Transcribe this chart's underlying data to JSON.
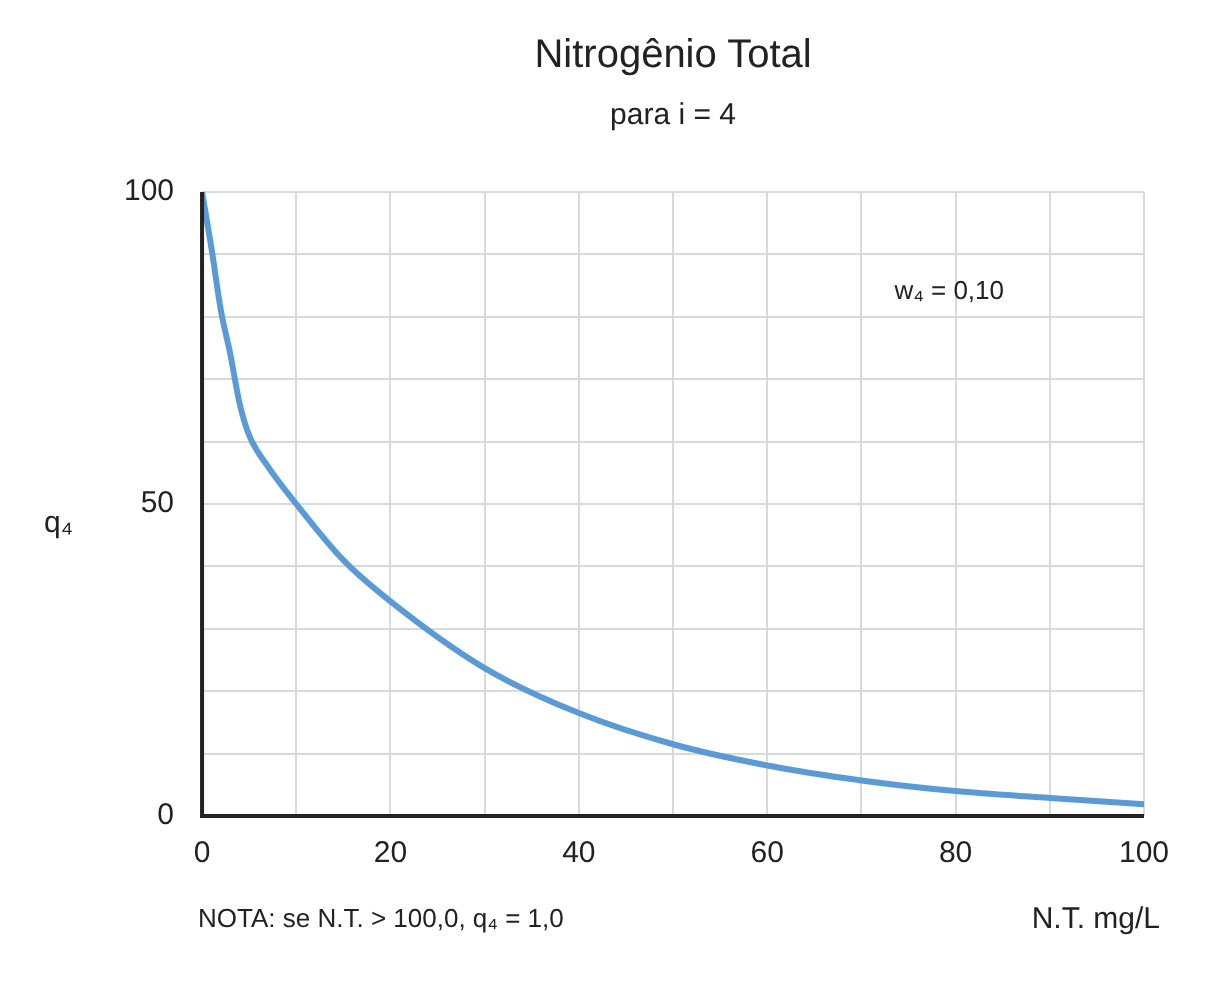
{
  "chart_data": {
    "type": "line",
    "title": "Nitrogênio Total",
    "subtitle": "para i = 4",
    "xlabel": "N.T. mg/L",
    "ylabel": "q₄",
    "annotations": [
      "w₄ = 0,10",
      "NOTA: se N.T. > 100,0, q₄ = 1,0"
    ],
    "x": [
      0,
      1,
      2,
      3,
      4,
      5,
      7,
      10,
      15,
      20,
      30,
      40,
      50,
      60,
      70,
      80,
      90,
      100
    ],
    "series": [
      {
        "color": "#5b9bd5",
        "values": [
          100,
          91,
          81,
          74,
          66,
          61,
          56,
          50,
          41,
          34.4,
          23.7,
          16.5,
          11.5,
          8.1,
          5.7,
          4.0,
          2.9,
          1.9
        ]
      }
    ],
    "xlim": [
      0,
      100
    ],
    "xticks": [
      0,
      {
        "value": 10,
        "label": null
      },
      20,
      {
        "value": 30,
        "label": null
      },
      40,
      {
        "value": 50,
        "label": null
      },
      60,
      {
        "value": 70,
        "label": null
      },
      80,
      {
        "value": 90,
        "label": null
      },
      100
    ],
    "ylim": [
      0,
      100
    ],
    "yticks": [
      0,
      {
        "value": 10,
        "label": null
      },
      {
        "value": 20,
        "label": null
      },
      {
        "value": 30,
        "label": null
      },
      {
        "value": 40,
        "label": null
      },
      50,
      {
        "value": 60,
        "label": null
      },
      {
        "value": 70,
        "label": null
      },
      {
        "value": 80,
        "label": null
      },
      {
        "value": 90,
        "label": null
      },
      100
    ],
    "grid": true,
    "legend": false,
    "marker": "none",
    "line_style": "solid"
  }
}
